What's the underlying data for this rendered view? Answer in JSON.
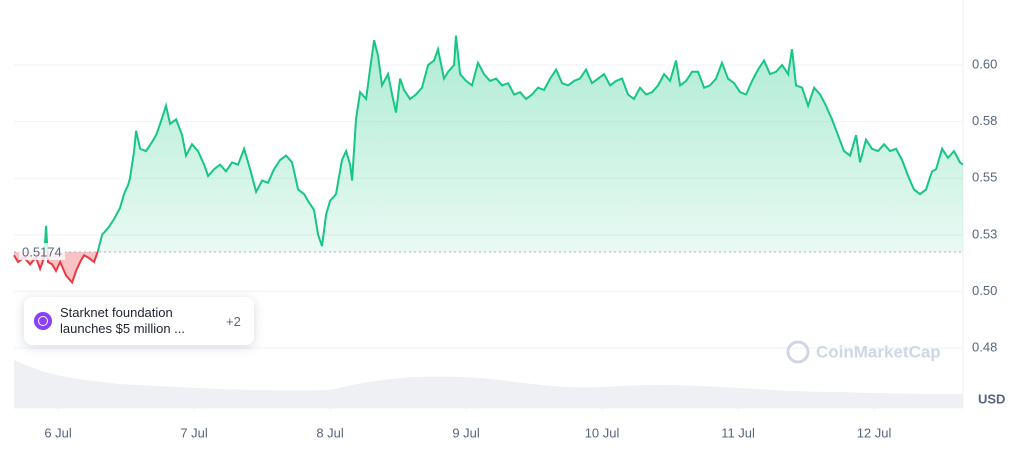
{
  "chart_data": {
    "type": "line",
    "x": [
      5.676,
      5.706,
      5.75,
      5.794,
      5.838,
      5.868,
      5.897,
      5.912,
      5.926,
      5.956,
      5.985,
      6.015,
      6.059,
      6.103,
      6.132,
      6.162,
      6.191,
      6.221,
      6.265,
      6.294,
      6.324,
      6.368,
      6.412,
      6.456,
      6.485,
      6.515,
      6.529,
      6.559,
      6.574,
      6.603,
      6.647,
      6.691,
      6.721,
      6.75,
      6.794,
      6.824,
      6.868,
      6.912,
      6.941,
      6.985,
      7.029,
      7.074,
      7.103,
      7.147,
      7.191,
      7.235,
      7.279,
      7.324,
      7.368,
      7.412,
      7.456,
      7.5,
      7.544,
      7.588,
      7.632,
      7.676,
      7.721,
      7.765,
      7.809,
      7.838,
      7.882,
      7.912,
      7.941,
      7.971,
      8,
      8.044,
      8.088,
      8.118,
      8.147,
      8.162,
      8.191,
      8.221,
      8.265,
      8.294,
      8.324,
      8.353,
      8.382,
      8.426,
      8.456,
      8.485,
      8.515,
      8.544,
      8.588,
      8.632,
      8.676,
      8.721,
      8.765,
      8.794,
      8.838,
      8.868,
      8.912,
      8.926,
      8.956,
      9,
      9.044,
      9.088,
      9.132,
      9.176,
      9.221,
      9.265,
      9.309,
      9.353,
      9.397,
      9.441,
      9.485,
      9.529,
      9.574,
      9.618,
      9.662,
      9.706,
      9.75,
      9.794,
      9.838,
      9.882,
      9.926,
      9.971,
      10.015,
      10.059,
      10.103,
      10.147,
      10.191,
      10.235,
      10.279,
      10.324,
      10.368,
      10.412,
      10.456,
      10.5,
      10.544,
      10.574,
      10.618,
      10.662,
      10.706,
      10.75,
      10.794,
      10.838,
      10.882,
      10.926,
      10.971,
      11.015,
      11.059,
      11.103,
      11.147,
      11.191,
      11.235,
      11.279,
      11.324,
      11.368,
      11.397,
      11.426,
      11.471,
      11.515,
      11.559,
      11.603,
      11.647,
      11.691,
      11.735,
      11.779,
      11.824,
      11.868,
      11.897,
      11.941,
      11.985,
      12.029,
      12.074,
      12.118,
      12.162,
      12.206,
      12.25,
      12.294,
      12.338,
      12.382,
      12.426,
      12.456,
      12.5,
      12.544,
      12.588,
      12.632,
      12.654
    ],
    "values": [
      0.516,
      0.513,
      0.515,
      0.512,
      0.515,
      0.51,
      0.515,
      0.529,
      0.513,
      0.512,
      0.509,
      0.513,
      0.507,
      0.504,
      0.509,
      0.513,
      0.516,
      0.515,
      0.513,
      0.518,
      0.525,
      0.528,
      0.532,
      0.537,
      0.543,
      0.547,
      0.55,
      0.562,
      0.571,
      0.563,
      0.562,
      0.566,
      0.569,
      0.574,
      0.582,
      0.574,
      0.576,
      0.569,
      0.56,
      0.565,
      0.562,
      0.556,
      0.551,
      0.554,
      0.556,
      0.553,
      0.557,
      0.556,
      0.563,
      0.554,
      0.544,
      0.549,
      0.548,
      0.554,
      0.558,
      0.56,
      0.557,
      0.545,
      0.543,
      0.54,
      0.536,
      0.525,
      0.52,
      0.534,
      0.54,
      0.543,
      0.558,
      0.562,
      0.556,
      0.549,
      0.576,
      0.588,
      0.585,
      0.598,
      0.611,
      0.604,
      0.591,
      0.596,
      0.587,
      0.579,
      0.594,
      0.589,
      0.585,
      0.587,
      0.59,
      0.6,
      0.602,
      0.607,
      0.594,
      0.597,
      0.6,
      0.613,
      0.596,
      0.593,
      0.591,
      0.601,
      0.596,
      0.593,
      0.594,
      0.591,
      0.592,
      0.587,
      0.588,
      0.585,
      0.587,
      0.59,
      0.589,
      0.594,
      0.598,
      0.592,
      0.591,
      0.593,
      0.594,
      0.598,
      0.592,
      0.594,
      0.596,
      0.591,
      0.593,
      0.594,
      0.587,
      0.585,
      0.59,
      0.587,
      0.588,
      0.591,
      0.596,
      0.593,
      0.602,
      0.591,
      0.593,
      0.597,
      0.597,
      0.59,
      0.591,
      0.594,
      0.601,
      0.594,
      0.592,
      0.588,
      0.587,
      0.593,
      0.598,
      0.602,
      0.596,
      0.597,
      0.6,
      0.596,
      0.607,
      0.591,
      0.59,
      0.582,
      0.59,
      0.587,
      0.582,
      0.576,
      0.569,
      0.562,
      0.56,
      0.569,
      0.557,
      0.567,
      0.563,
      0.562,
      0.565,
      0.562,
      0.563,
      0.558,
      0.551,
      0.545,
      0.543,
      0.545,
      0.553,
      0.554,
      0.563,
      0.559,
      0.562,
      0.557,
      0.556
    ],
    "color": "#16c784",
    "down_color": "#ea3943",
    "baseline": 0.5174,
    "xlim": [
      5.676,
      12.654
    ],
    "xticks": [
      {
        "value": 6,
        "label": "6 Jul"
      },
      {
        "value": 7,
        "label": "7 Jul"
      },
      {
        "value": 8,
        "label": "8 Jul"
      },
      {
        "value": 9,
        "label": "9 Jul"
      },
      {
        "value": 10,
        "label": "10 Jul"
      },
      {
        "value": 11,
        "label": "11 Jul"
      },
      {
        "value": 12,
        "label": "12 Jul"
      }
    ],
    "ylim": [
      0.4485,
      0.6252
    ],
    "yticks": [
      {
        "value": 0.475,
        "label": "0.48"
      },
      {
        "value": 0.5,
        "label": "0.50"
      },
      {
        "value": 0.525,
        "label": "0.53"
      },
      {
        "value": 0.55,
        "label": "0.55"
      },
      {
        "value": 0.575,
        "label": "0.58"
      },
      {
        "value": 0.6,
        "label": "0.60"
      }
    ],
    "grid": true,
    "currency": "USD",
    "watermark": "CoinMarketCap",
    "annotation": {
      "text": "Starknet foundation launches $5 million ...",
      "more": "+2"
    }
  }
}
